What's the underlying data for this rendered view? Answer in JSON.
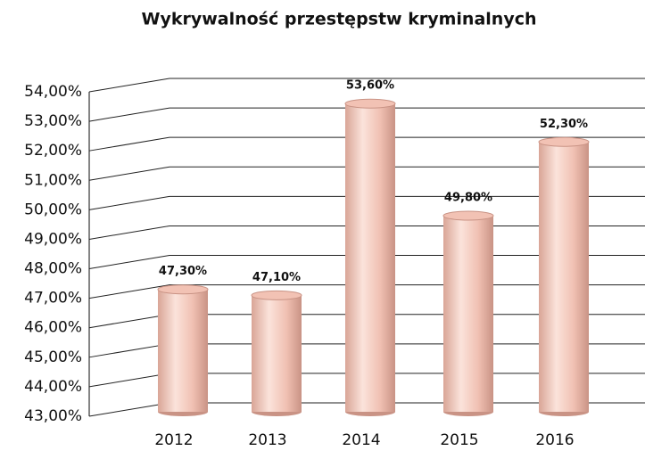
{
  "chart_data": {
    "type": "bar",
    "title": "Wykrywalność przestępstw kryminalnych",
    "categories": [
      "2012",
      "2013",
      "2014",
      "2015",
      "2016"
    ],
    "values": [
      47.3,
      47.1,
      53.6,
      49.8,
      52.3
    ],
    "value_labels": [
      "47,30%",
      "47,10%",
      "53,60%",
      "49,80%",
      "52,30%"
    ],
    "color": "#f2c2b4",
    "ylim": [
      43,
      54
    ],
    "yticks": [
      {
        "value": 43,
        "label": "43,00%"
      },
      {
        "value": 44,
        "label": "44,00%"
      },
      {
        "value": 45,
        "label": "45,00%"
      },
      {
        "value": 46,
        "label": "46,00%"
      },
      {
        "value": 47,
        "label": "47,00%"
      },
      {
        "value": 48,
        "label": "48,00%"
      },
      {
        "value": 49,
        "label": "49,00%"
      },
      {
        "value": 50,
        "label": "50,00%"
      },
      {
        "value": 51,
        "label": "51,00%"
      },
      {
        "value": 52,
        "label": "52,00%"
      },
      {
        "value": 53,
        "label": "53,00%"
      },
      {
        "value": 54,
        "label": "54,00%"
      }
    ],
    "grid": true
  }
}
